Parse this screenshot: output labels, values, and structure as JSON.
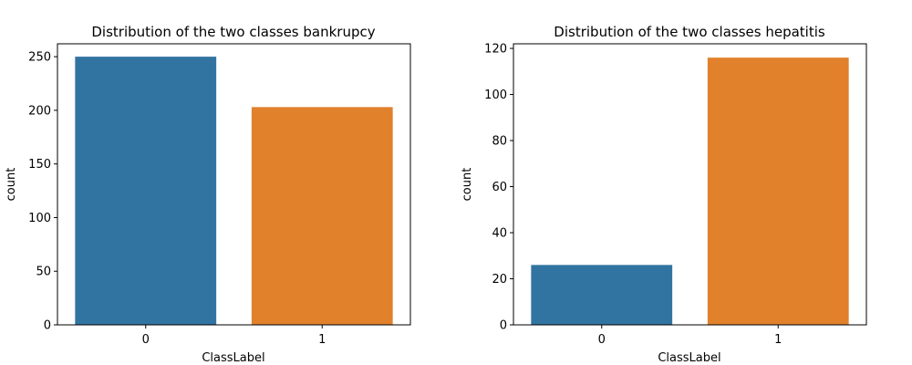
{
  "chart_data": [
    {
      "type": "bar",
      "title": "Distribution of the two classes bankrupcy",
      "xlabel": "ClassLabel",
      "ylabel": "count",
      "categories": [
        "0",
        "1"
      ],
      "values": [
        250,
        203
      ],
      "colors": [
        "#3274a1",
        "#e1812c"
      ],
      "ylim": [
        0,
        262
      ],
      "yticks": [
        0,
        50,
        100,
        150,
        200,
        250
      ],
      "grid": false,
      "legend": "none"
    },
    {
      "type": "bar",
      "title": "Distribution of the two classes hepatitis",
      "xlabel": "ClassLabel",
      "ylabel": "count",
      "categories": [
        "0",
        "1"
      ],
      "values": [
        26,
        116
      ],
      "colors": [
        "#3274a1",
        "#e1812c"
      ],
      "ylim": [
        0,
        122
      ],
      "yticks": [
        0,
        20,
        40,
        60,
        80,
        100,
        120
      ],
      "grid": false,
      "legend": "none"
    }
  ]
}
